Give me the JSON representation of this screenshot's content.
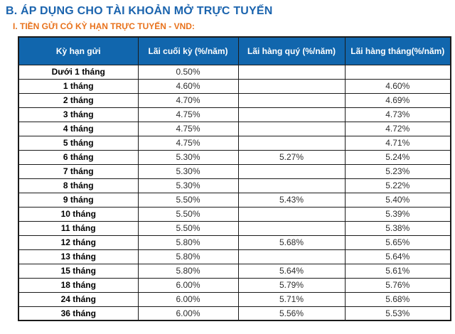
{
  "page": {
    "title": "B. ÁP DỤNG CHO TÀI KHOẢN MỞ TRỰC TUYẾN",
    "subtitle": "I. TIỀN GỬI CÓ KỲ HẠN TRỰC TUYẾN - VND:"
  },
  "colors": {
    "title_blue": "#1b64ae",
    "subtitle_orange": "#e8721c",
    "header_bg": "#1166ad",
    "header_text": "#ffffff",
    "border_color": "#1b1b1b"
  },
  "table": {
    "headers": [
      "Kỳ hạn gửi",
      "Lãi cuối kỳ (%/năm)",
      "Lãi hàng quý (%/năm)",
      "Lãi hàng tháng(%/năm)"
    ],
    "rows": [
      {
        "term": "Dưới 1 tháng",
        "end": "0.50%",
        "quarterly": "",
        "monthly": ""
      },
      {
        "term": "1 tháng",
        "end": "4.60%",
        "quarterly": "",
        "monthly": "4.60%"
      },
      {
        "term": "2 tháng",
        "end": "4.70%",
        "quarterly": "",
        "monthly": "4.69%"
      },
      {
        "term": "3 tháng",
        "end": "4.75%",
        "quarterly": "",
        "monthly": "4.73%"
      },
      {
        "term": "4 tháng",
        "end": "4.75%",
        "quarterly": "",
        "monthly": "4.72%"
      },
      {
        "term": "5 tháng",
        "end": "4.75%",
        "quarterly": "",
        "monthly": "4.71%"
      },
      {
        "term": "6 tháng",
        "end": "5.30%",
        "quarterly": "5.27%",
        "monthly": "5.24%"
      },
      {
        "term": "7 tháng",
        "end": "5.30%",
        "quarterly": "",
        "monthly": "5.23%"
      },
      {
        "term": "8 tháng",
        "end": "5.30%",
        "quarterly": "",
        "monthly": "5.22%"
      },
      {
        "term": "9 tháng",
        "end": "5.50%",
        "quarterly": "5.43%",
        "monthly": "5.40%"
      },
      {
        "term": "10 tháng",
        "end": "5.50%",
        "quarterly": "",
        "monthly": "5.39%"
      },
      {
        "term": "11 tháng",
        "end": "5.50%",
        "quarterly": "",
        "monthly": "5.38%"
      },
      {
        "term": "12 tháng",
        "end": "5.80%",
        "quarterly": "5.68%",
        "monthly": "5.65%"
      },
      {
        "term": "13 tháng",
        "end": "5.80%",
        "quarterly": "",
        "monthly": "5.64%"
      },
      {
        "term": "15 tháng",
        "end": "5.80%",
        "quarterly": "5.64%",
        "monthly": "5.61%"
      },
      {
        "term": "18 tháng",
        "end": "6.00%",
        "quarterly": "5.79%",
        "monthly": "5.76%"
      },
      {
        "term": "24 tháng",
        "end": "6.00%",
        "quarterly": "5.71%",
        "monthly": "5.68%"
      },
      {
        "term": "36 tháng",
        "end": "6.00%",
        "quarterly": "5.56%",
        "monthly": "5.53%"
      }
    ]
  }
}
